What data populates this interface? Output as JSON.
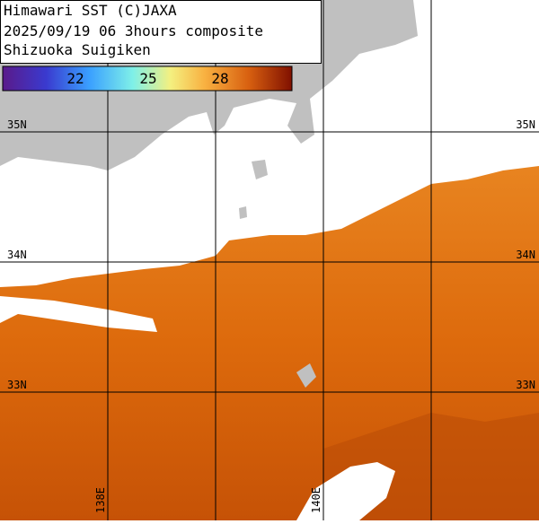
{
  "title_lines": [
    "Himawari SST (C)JAXA",
    "2025/09/19 06 3hours composite",
    "Shizuoka Suigiken"
  ],
  "colorbar": {
    "ticks": [
      22,
      25,
      28
    ]
  },
  "lat_labels": [
    "35N",
    "34N",
    "33N"
  ],
  "lon_labels": [
    "138E",
    "140E"
  ]
}
